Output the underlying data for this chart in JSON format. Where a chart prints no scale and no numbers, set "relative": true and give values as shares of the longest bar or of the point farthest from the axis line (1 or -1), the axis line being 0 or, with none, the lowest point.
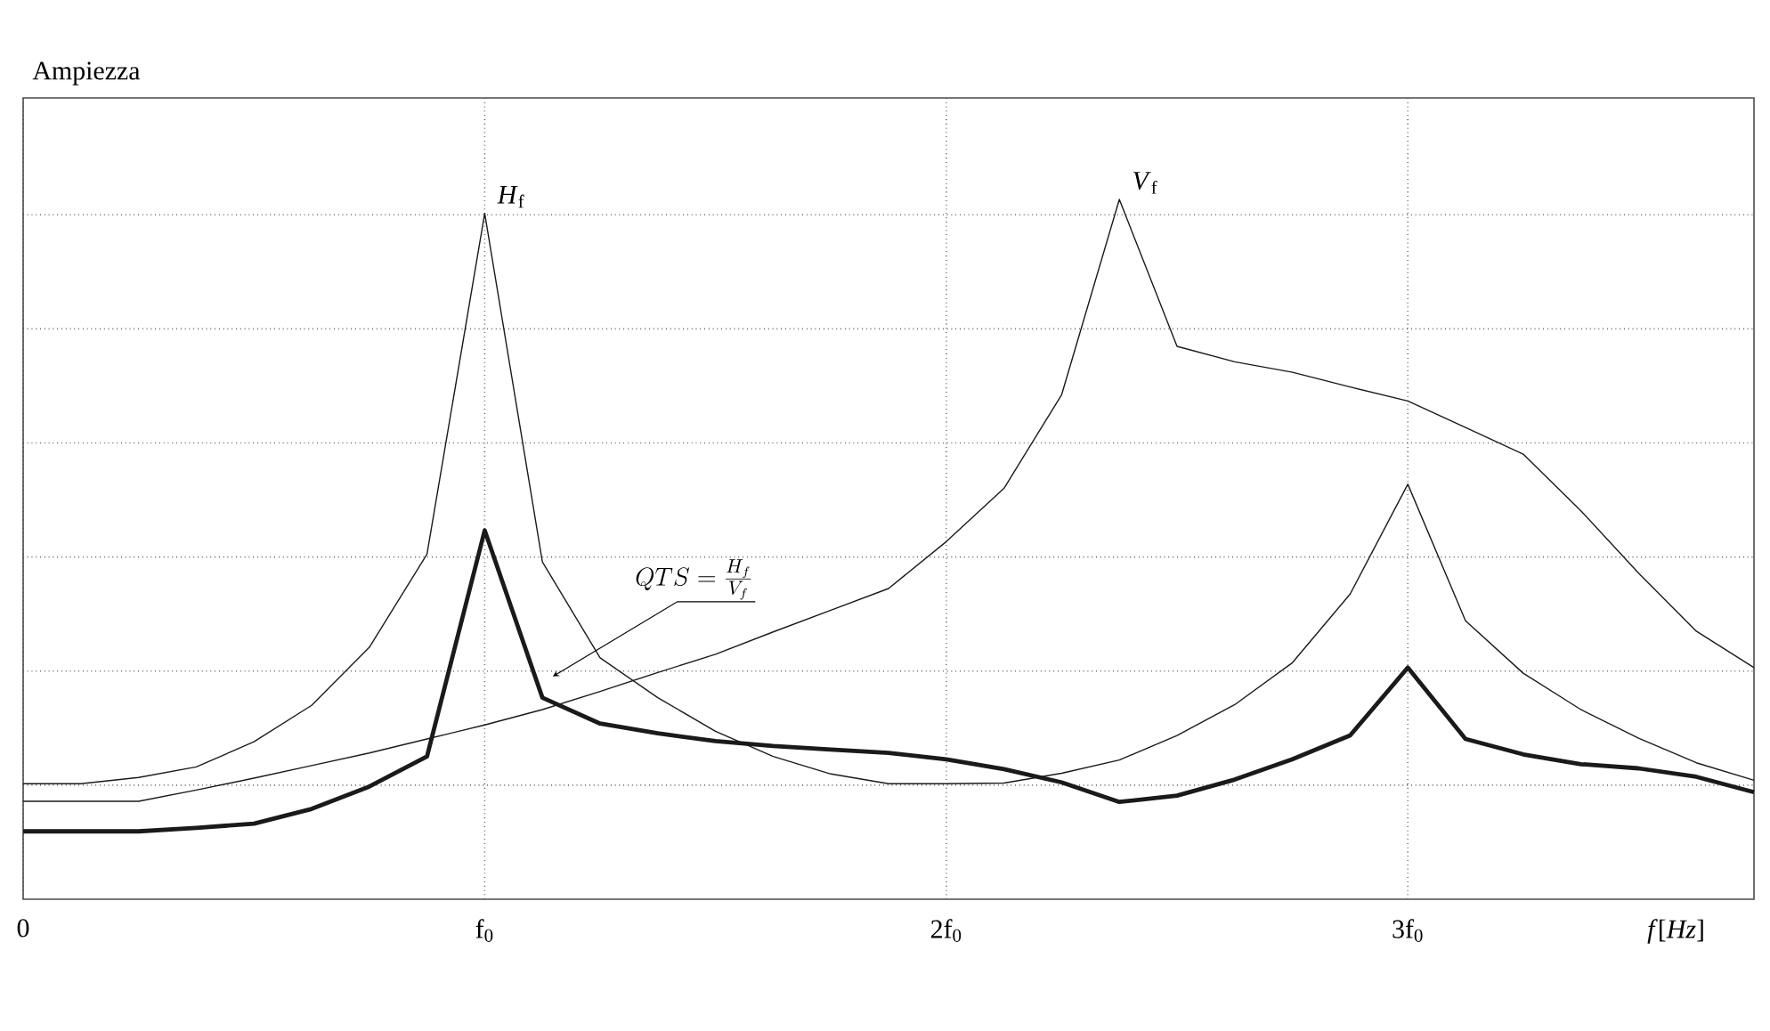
{
  "chart_data": {
    "type": "line",
    "relative": true,
    "ylabel": "Ampiezza",
    "xlabel": "*f*[*Hz*]",
    "categories": [
      "0",
      null,
      null,
      null,
      null,
      null,
      null,
      null,
      "f$_{0}$",
      null,
      null,
      null,
      null,
      null,
      null,
      null,
      "2f$_{0}$",
      null,
      null,
      null,
      null,
      null,
      null,
      null,
      "3f$_{0}$",
      null,
      null,
      null,
      null,
      null,
      null
    ],
    "grid": true,
    "marker": "none",
    "line_style": "solid",
    "annotations": [
      "QTS = \\frac{H_f}{V_f}"
    ],
    "series": [
      {
        "name": "*H*$_{f}$",
        "color": "#1a1a1a",
        "values": [
          0.165,
          0.165,
          0.174,
          0.189,
          0.225,
          0.277,
          0.36,
          0.493,
          0.98,
          0.482,
          0.345,
          0.288,
          0.24,
          0.204,
          0.179,
          0.165,
          0.165,
          0.166,
          0.18,
          0.199,
          0.234,
          0.278,
          0.338,
          0.436,
          0.593,
          0.398,
          0.323,
          0.271,
          0.23,
          0.195,
          0.17
        ]
      },
      {
        "name": "*V*$_{f}$",
        "color": "#1a1a1a",
        "values": [
          0.14,
          0.14,
          0.14,
          0.156,
          0.173,
          0.191,
          0.209,
          0.229,
          0.249,
          0.271,
          0.297,
          0.324,
          0.35,
          0.382,
          0.413,
          0.444,
          0.511,
          0.587,
          0.721,
          1.0,
          0.79,
          0.768,
          0.753,
          0.732,
          0.712,
          0.674,
          0.636,
          0.555,
          0.466,
          0.383,
          0.331
        ]
      },
      {
        "color": "#1a1a1a",
        "values": [
          0.097,
          0.097,
          0.097,
          0.102,
          0.108,
          0.129,
          0.161,
          0.204,
          0.527,
          0.288,
          0.251,
          0.237,
          0.226,
          0.219,
          0.214,
          0.209,
          0.2,
          0.186,
          0.167,
          0.139,
          0.148,
          0.171,
          0.2,
          0.234,
          0.331,
          0.229,
          0.207,
          0.193,
          0.187,
          0.175,
          0.153
        ]
      }
    ]
  }
}
